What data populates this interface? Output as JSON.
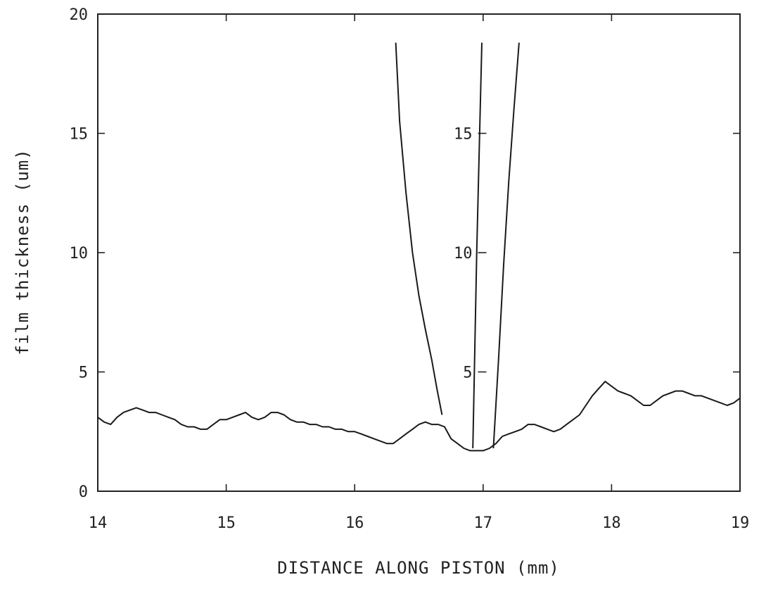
{
  "chart_data": {
    "type": "line",
    "title": "",
    "xlabel": "DISTANCE ALONG PISTON (mm)",
    "ylabel": "film thickness (um)",
    "xlim": [
      14,
      19
    ],
    "ylim": [
      0,
      20
    ],
    "x_ticks": [
      14,
      15,
      16,
      17,
      18,
      19
    ],
    "x_tick_labels": [
      "14",
      "15",
      "16",
      "17",
      "18",
      "19"
    ],
    "y_ticks": [
      0,
      5,
      10,
      15,
      20
    ],
    "y_tick_labels": [
      "0",
      "5",
      "10",
      "15",
      "20"
    ],
    "grid": false,
    "series": [
      {
        "x": [
          14.0,
          14.05,
          14.1,
          14.15,
          14.2,
          14.25,
          14.3,
          14.35,
          14.4,
          14.45,
          14.5,
          14.55,
          14.6,
          14.65,
          14.7,
          14.75,
          14.8,
          14.85,
          14.9,
          14.95,
          15.0,
          15.05,
          15.1,
          15.15,
          15.2,
          15.25,
          15.3,
          15.35,
          15.4,
          15.45,
          15.5,
          15.55,
          15.6,
          15.65,
          15.7,
          15.75,
          15.8,
          15.85,
          15.9,
          15.95,
          16.0,
          16.05,
          16.1,
          16.15,
          16.2,
          16.25,
          16.3,
          16.35,
          16.4,
          16.45,
          16.5,
          16.55,
          16.6,
          16.65,
          16.7,
          16.75,
          16.8,
          16.85,
          16.9,
          16.95,
          17.0,
          17.05,
          17.1,
          17.15,
          17.2,
          17.25,
          17.3,
          17.35,
          17.4,
          17.45,
          17.5,
          17.55,
          17.6,
          17.65,
          17.7,
          17.75,
          17.8,
          17.85,
          17.9,
          17.95,
          18.0,
          18.05,
          18.1,
          18.15,
          18.2,
          18.25,
          18.3,
          18.35,
          18.4,
          18.45,
          18.5,
          18.55,
          18.6,
          18.65,
          18.7,
          18.75,
          18.8,
          18.85,
          18.9,
          18.95,
          19.0
        ],
        "y": [
          3.1,
          2.9,
          2.8,
          3.1,
          3.3,
          3.4,
          3.5,
          3.4,
          3.3,
          3.3,
          3.2,
          3.1,
          3.0,
          2.8,
          2.7,
          2.7,
          2.6,
          2.6,
          2.8,
          3.0,
          3.0,
          3.1,
          3.2,
          3.3,
          3.1,
          3.0,
          3.1,
          3.3,
          3.3,
          3.2,
          3.0,
          2.9,
          2.9,
          2.8,
          2.8,
          2.7,
          2.7,
          2.6,
          2.6,
          2.5,
          2.5,
          2.4,
          2.3,
          2.2,
          2.1,
          2.0,
          2.0,
          2.2,
          2.4,
          2.6,
          2.8,
          2.9,
          2.8,
          2.8,
          2.7,
          2.2,
          2.0,
          1.8,
          1.7,
          1.7,
          1.7,
          1.8,
          2.0,
          2.3,
          2.4,
          2.5,
          2.6,
          2.8,
          2.8,
          2.7,
          2.6,
          2.5,
          2.6,
          2.8,
          3.0,
          3.2,
          3.6,
          4.0,
          4.3,
          4.6,
          4.4,
          4.2,
          4.1,
          4.0,
          3.8,
          3.6,
          3.6,
          3.8,
          4.0,
          4.1,
          4.2,
          4.2,
          4.1,
          4.0,
          4.0,
          3.9,
          3.8,
          3.7,
          3.6,
          3.7,
          3.9
        ]
      }
    ],
    "inset": {
      "type": "line",
      "y_tick_labels": [
        "5",
        "10",
        "15"
      ],
      "y_ticks": [
        5,
        10,
        15
      ],
      "series": [
        {
          "x": [
            16.32,
            16.35,
            16.4,
            16.45,
            16.5,
            16.55,
            16.6,
            16.64,
            16.68
          ],
          "y": [
            18.8,
            15.5,
            12.5,
            10.0,
            8.2,
            6.8,
            5.5,
            4.3,
            3.2
          ]
        },
        {
          "x": [
            16.92,
            16.95,
            16.99
          ],
          "y": [
            1.8,
            10.0,
            18.8
          ]
        },
        {
          "x": [
            17.08,
            17.12,
            17.16,
            17.2,
            17.24,
            17.28
          ],
          "y": [
            1.8,
            5.5,
            9.5,
            13.0,
            16.0,
            18.8
          ]
        }
      ]
    }
  }
}
